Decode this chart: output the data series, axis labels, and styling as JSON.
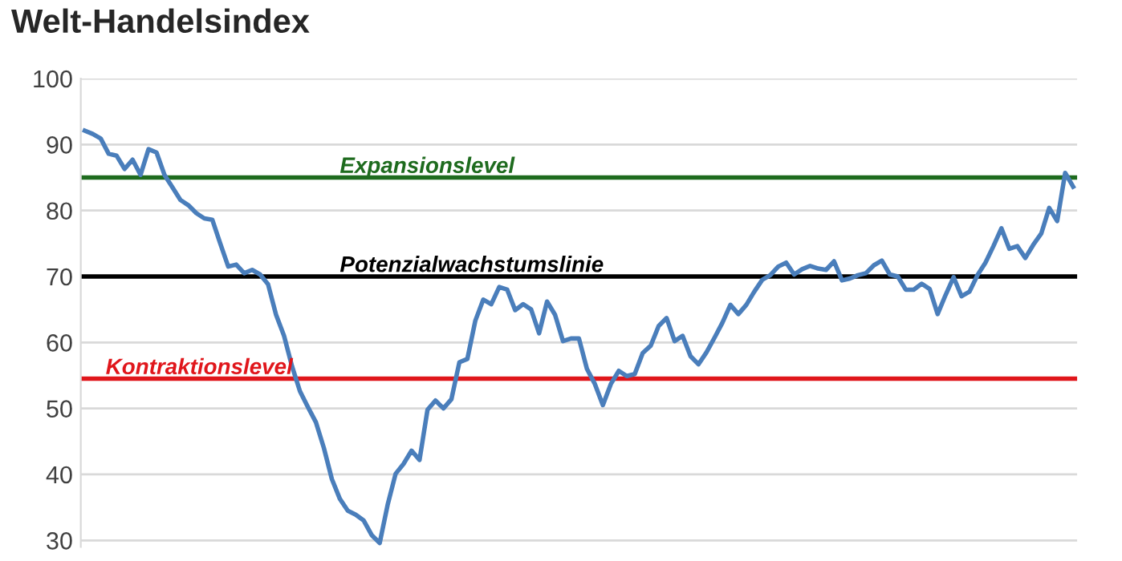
{
  "chart_data": {
    "type": "line",
    "title": "Welt-Handelsindex",
    "categories": [
      null,
      null,
      null,
      null,
      null,
      null,
      null,
      null,
      null,
      null,
      null,
      null,
      null,
      null,
      null,
      null,
      null,
      null,
      null,
      null,
      null,
      null,
      null,
      null,
      null,
      null,
      null,
      null,
      null,
      null,
      null,
      null,
      null,
      null,
      null,
      null,
      null,
      null,
      null,
      null,
      null,
      null,
      null,
      null,
      null,
      null,
      null,
      null,
      null,
      null,
      null,
      null,
      null,
      null,
      null,
      null,
      null,
      null,
      null,
      null,
      null,
      null,
      null,
      null,
      null,
      null,
      null,
      null,
      null,
      null,
      null,
      null,
      null,
      null,
      null,
      null,
      null,
      null,
      null,
      null,
      null,
      null,
      null,
      null,
      null,
      null,
      null,
      null,
      null,
      null,
      null,
      null,
      null,
      null,
      null,
      null,
      null,
      null,
      null,
      null,
      null,
      null,
      null,
      null,
      null,
      null,
      null,
      null,
      null,
      null,
      null,
      null,
      null,
      null,
      null,
      null,
      null,
      null,
      null,
      null,
      null,
      null,
      null,
      null,
      null
    ],
    "series": [
      {
        "color": "#4a7ebb",
        "values": [
          92.1,
          91.6,
          90.9,
          88.6,
          88.3,
          86.3,
          87.7,
          85.4,
          89.3,
          88.8,
          85.4,
          83.5,
          81.6,
          80.8,
          79.6,
          78.8,
          78.6,
          75,
          71.5,
          71.8,
          70.5,
          71,
          70.3,
          68.8,
          64.2,
          61,
          56.4,
          52.6,
          50.2,
          47.9,
          44,
          39.3,
          36.3,
          34.5,
          33.9,
          33,
          30.8,
          29.6,
          35.4,
          40.1,
          41.6,
          43.6,
          42.2,
          49.8,
          51.2,
          50,
          51.4,
          57,
          57.5,
          63.3,
          66.5,
          65.8,
          68.4,
          68,
          64.9,
          65.8,
          65,
          61.4,
          66.2,
          64.2,
          60.2,
          60.6,
          60.6,
          56,
          53.7,
          50.5,
          53.7,
          55.7,
          54.9,
          55.2,
          58.4,
          59.5,
          62.5,
          63.7,
          60.2,
          61,
          57.9,
          56.7,
          58.5,
          60.7,
          63,
          65.7,
          64.3,
          65.7,
          67.7,
          69.5,
          70.2,
          71.5,
          72.1,
          70.3,
          71.1,
          71.6,
          71.2,
          71,
          72.3,
          69.4,
          69.7,
          70.2,
          70.5,
          71.7,
          72.4,
          70.3,
          70,
          68,
          68,
          68.9,
          68.1,
          64.3,
          67.2,
          69.9,
          67,
          67.7,
          70.2,
          72.1,
          74.6,
          77.3,
          74.2,
          74.6,
          72.8,
          74.8,
          76.5,
          80.4,
          78.4,
          85.7,
          83.6
        ]
      }
    ],
    "ylim": [
      29,
      100
    ],
    "yticks": [
      30,
      40,
      50,
      60,
      70,
      80,
      90,
      100
    ],
    "grid": "y",
    "tick_labels": "y",
    "ref_lines": [
      {
        "axis": "y",
        "value": 85,
        "label": "Expansionslevel",
        "color": "#1e6b1e"
      },
      {
        "axis": "y",
        "value": 70,
        "label": "Potenzialwachstumslinie",
        "color": "#000000"
      },
      {
        "axis": "y",
        "value": 54.5,
        "label": "Kontraktionslevel",
        "color": "#e0161b"
      }
    ]
  }
}
